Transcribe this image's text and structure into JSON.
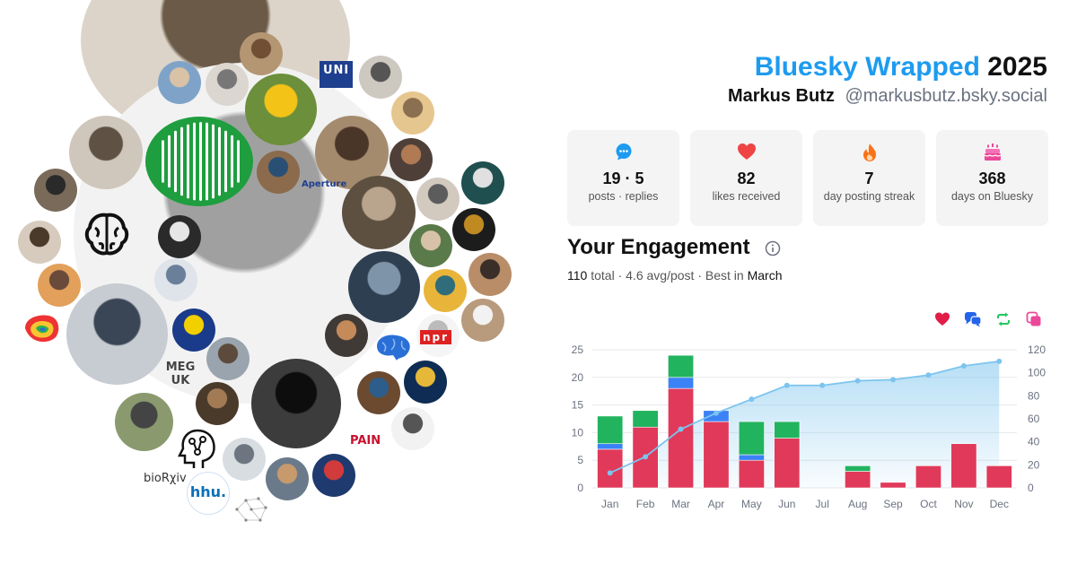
{
  "header": {
    "title_brand": "Bluesky Wrapped",
    "title_year": "2025",
    "user_name": "Markus Butz",
    "user_handle": "@markusbutz.bsky.social"
  },
  "stats": [
    {
      "icon": "speech-bubble-icon",
      "value": "19 · 5",
      "label": "posts · replies",
      "color": "#1d9bf0"
    },
    {
      "icon": "heart-icon",
      "value": "82",
      "label": "likes received",
      "color": "#ef4444"
    },
    {
      "icon": "flame-icon",
      "value": "7",
      "label": "day posting streak",
      "color": "#f97316"
    },
    {
      "icon": "cake-icon",
      "value": "368",
      "label": "days on Bluesky",
      "color": "#ec4899"
    }
  ],
  "engagement": {
    "title": "Your Engagement",
    "total_value": "110",
    "total_word": "total",
    "avg": "4.6 avg/post",
    "best_prefix": "Best in",
    "best_month": "March",
    "legend_icons": [
      {
        "icon": "heart-icon",
        "color": "#e11d48"
      },
      {
        "icon": "reply-icon",
        "color": "#2563eb"
      },
      {
        "icon": "repost-icon",
        "color": "#22c55e"
      },
      {
        "icon": "quote-icon",
        "color": "#ec4899"
      }
    ]
  },
  "cluster_logos": {
    "uni": "UNI",
    "aperture": "Aperture",
    "biorxiv": "bioRχiv",
    "hhu": "hhu.",
    "npr": "npr",
    "pain": "PAIN",
    "meg": "MEG UK"
  },
  "chart_data": {
    "type": "bar",
    "categories": [
      "Jan",
      "Feb",
      "Mar",
      "Apr",
      "May",
      "Jun",
      "Jul",
      "Aug",
      "Sep",
      "Oct",
      "Nov",
      "Dec"
    ],
    "series": [
      {
        "name": "likes",
        "color": "#e0395a",
        "values": [
          7,
          11,
          18,
          12,
          5,
          9,
          0,
          3,
          1,
          4,
          8,
          4
        ]
      },
      {
        "name": "replies",
        "color": "#3b82f6",
        "values": [
          1,
          0,
          2,
          2,
          1,
          0,
          0,
          0,
          0,
          0,
          0,
          0
        ]
      },
      {
        "name": "reposts",
        "color": "#22b35e",
        "values": [
          5,
          3,
          4,
          0,
          6,
          3,
          0,
          1,
          0,
          0,
          0,
          0
        ]
      }
    ],
    "cumulative": {
      "color": "#7cc4ee",
      "values": [
        13,
        27,
        51,
        65,
        77,
        89,
        89,
        93,
        94,
        98,
        106,
        110
      ]
    },
    "ylim_left": [
      0,
      25
    ],
    "yticks_left": [
      0,
      5,
      10,
      15,
      20,
      25
    ],
    "ylim_right": [
      0,
      120
    ],
    "yticks_right": [
      0,
      20,
      40,
      60,
      80,
      100,
      120
    ],
    "grid": true
  }
}
